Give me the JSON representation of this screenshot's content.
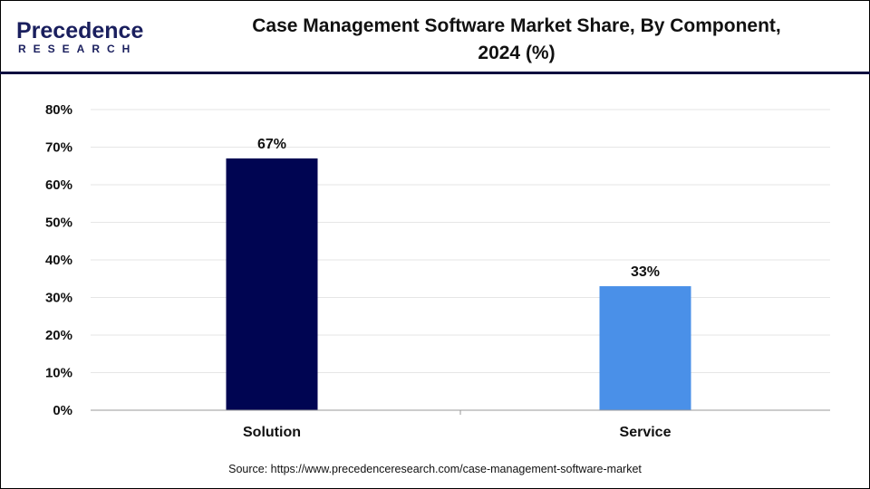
{
  "logo": {
    "text_top": "Precedence",
    "text_bottom": "RESEARCH"
  },
  "header": {
    "title_line1": "Case Management Software Market Share, By Component,",
    "title_line2": "2024 (%)"
  },
  "source": "Source: https://www.precedenceresearch.com/case-management-software-market",
  "chart_data": {
    "type": "bar",
    "title": "Case Management Software Market Share, By Component, 2024 (%)",
    "categories": [
      "Solution",
      "Service"
    ],
    "values": [
      67,
      33
    ],
    "data_labels": [
      "67%",
      "33%"
    ],
    "colors": [
      "#000552",
      "#4a90e8"
    ],
    "ylim": [
      0,
      80
    ],
    "yticks": [
      "0%",
      "10%",
      "20%",
      "30%",
      "40%",
      "50%",
      "60%",
      "70%",
      "80%"
    ],
    "grid": true,
    "legend": "none"
  }
}
